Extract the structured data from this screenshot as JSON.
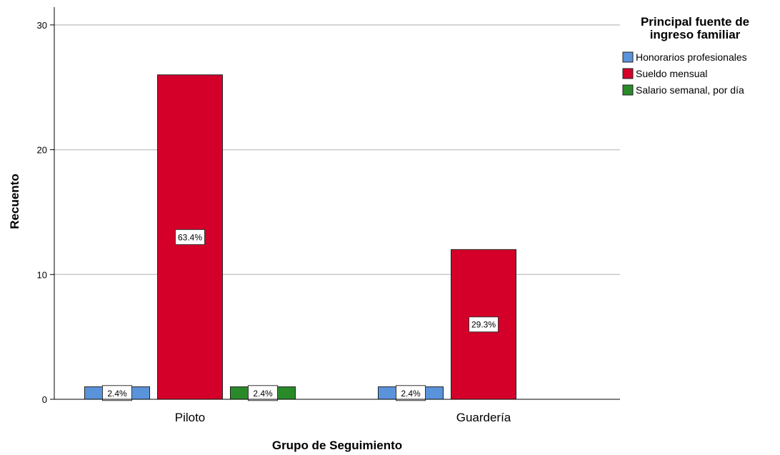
{
  "chart_data": {
    "type": "bar",
    "categories": [
      "Piloto",
      "Guardería"
    ],
    "series": [
      {
        "name": "Honorarios profesionales",
        "values": [
          1,
          1
        ],
        "labels": [
          "2.4%",
          "2.4%"
        ],
        "color": "#5b93db"
      },
      {
        "name": "Sueldo mensual",
        "values": [
          26,
          12
        ],
        "labels": [
          "63.4%",
          "29.3%"
        ],
        "color": "#d4002a"
      },
      {
        "name": "Salario semanal, por día",
        "values": [
          1,
          0
        ],
        "labels": [
          "2.4%",
          null
        ],
        "color": "#2a8a2a"
      }
    ],
    "xlabel": "Grupo de Seguimiento",
    "ylabel": "Recuento",
    "ylim": [
      0,
      30
    ],
    "yticks": [
      0,
      10,
      20,
      30
    ],
    "legend_title": "Principal fuente de ingreso familiar",
    "legend_position": "top-right",
    "grid": true
  }
}
